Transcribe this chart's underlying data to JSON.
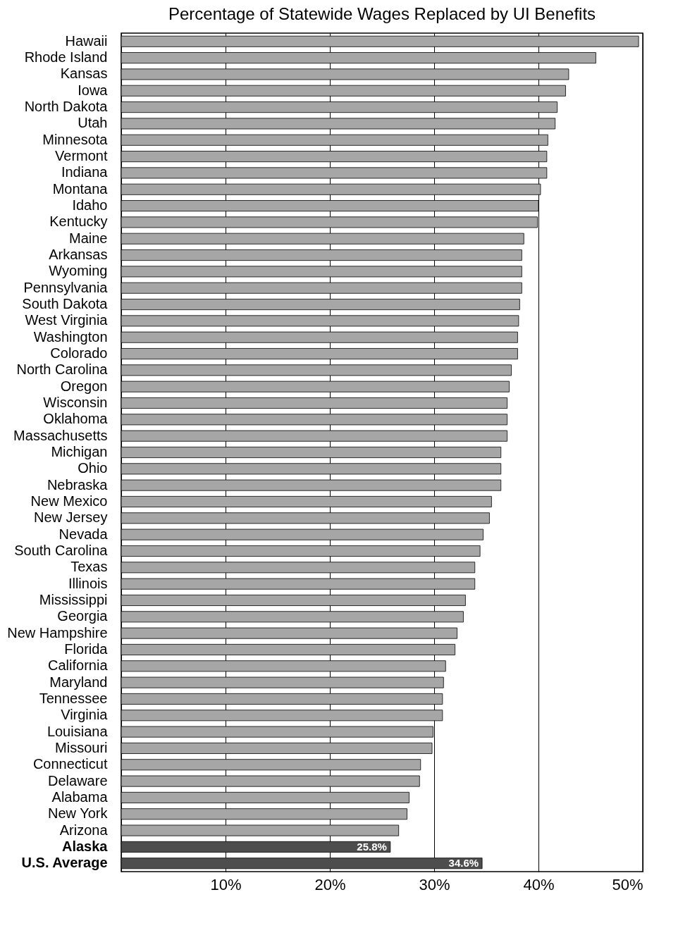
{
  "chart_data": {
    "type": "bar",
    "orientation": "horizontal",
    "title": "Percentage of Statewide Wages Replaced by UI Benefits",
    "categories": [
      "Hawaii",
      "Rhode Island",
      "Kansas",
      "Iowa",
      "North Dakota",
      "Utah",
      "Minnesota",
      "Vermont",
      "Indiana",
      "Montana",
      "Idaho",
      "Kentucky",
      "Maine",
      "Arkansas",
      "Wyoming",
      "Pennsylvania",
      "South Dakota",
      "West Virginia",
      "Washington",
      "Colorado",
      "North Carolina",
      "Oregon",
      "Wisconsin",
      "Oklahoma",
      "Massachusetts",
      "Michigan",
      "Ohio",
      "Nebraska",
      "New Mexico",
      "New Jersey",
      "Nevada",
      "South Carolina",
      "Texas",
      "Illinois",
      "Mississippi",
      "Georgia",
      "New Hampshire",
      "Florida",
      "California",
      "Maryland",
      "Tennessee",
      "Virginia",
      "Louisiana",
      "Missouri",
      "Connecticut",
      "Delaware",
      "Alabama",
      "New York",
      "Arizona",
      "Alaska",
      "U.S. Average"
    ],
    "values": [
      49.6,
      45.5,
      42.9,
      42.6,
      41.8,
      41.6,
      40.9,
      40.8,
      40.8,
      40.2,
      40.0,
      39.9,
      38.6,
      38.4,
      38.4,
      38.4,
      38.2,
      38.1,
      38.0,
      38.0,
      37.4,
      37.2,
      37.0,
      37.0,
      37.0,
      36.4,
      36.4,
      36.4,
      35.5,
      35.3,
      34.7,
      34.4,
      33.9,
      33.9,
      33.0,
      32.8,
      32.2,
      32.0,
      31.1,
      30.9,
      30.8,
      30.8,
      29.9,
      29.8,
      28.7,
      28.6,
      27.6,
      27.4,
      26.6,
      25.8,
      34.6
    ],
    "colors": [
      "#a6a6a6",
      "#a6a6a6",
      "#a6a6a6",
      "#a6a6a6",
      "#a6a6a6",
      "#a6a6a6",
      "#a6a6a6",
      "#a6a6a6",
      "#a6a6a6",
      "#a6a6a6",
      "#a6a6a6",
      "#a6a6a6",
      "#a6a6a6",
      "#a6a6a6",
      "#a6a6a6",
      "#a6a6a6",
      "#a6a6a6",
      "#a6a6a6",
      "#a6a6a6",
      "#a6a6a6",
      "#a6a6a6",
      "#a6a6a6",
      "#a6a6a6",
      "#a6a6a6",
      "#a6a6a6",
      "#a6a6a6",
      "#a6a6a6",
      "#a6a6a6",
      "#a6a6a6",
      "#a6a6a6",
      "#a6a6a6",
      "#a6a6a6",
      "#a6a6a6",
      "#a6a6a6",
      "#a6a6a6",
      "#a6a6a6",
      "#a6a6a6",
      "#a6a6a6",
      "#a6a6a6",
      "#a6a6a6",
      "#a6a6a6",
      "#a6a6a6",
      "#a6a6a6",
      "#a6a6a6",
      "#a6a6a6",
      "#a6a6a6",
      "#a6a6a6",
      "#a6a6a6",
      "#a6a6a6",
      "#4d4d4d",
      "#4d4d4d"
    ],
    "value_labels": [
      null,
      null,
      null,
      null,
      null,
      null,
      null,
      null,
      null,
      null,
      null,
      null,
      null,
      null,
      null,
      null,
      null,
      null,
      null,
      null,
      null,
      null,
      null,
      null,
      null,
      null,
      null,
      null,
      null,
      null,
      null,
      null,
      null,
      null,
      null,
      null,
      null,
      null,
      null,
      null,
      null,
      null,
      null,
      null,
      null,
      null,
      null,
      null,
      null,
      "25.8%",
      "34.6%"
    ],
    "xlim": [
      0,
      50
    ],
    "xticks": [
      {
        "value": 0,
        "label": null
      },
      {
        "value": 10,
        "label": "10%"
      },
      {
        "value": 20,
        "label": "20%"
      },
      {
        "value": 30,
        "label": "30%"
      },
      {
        "value": 40,
        "label": "40%"
      },
      {
        "value": 50,
        "label": "50%"
      }
    ],
    "grid": "x"
  }
}
